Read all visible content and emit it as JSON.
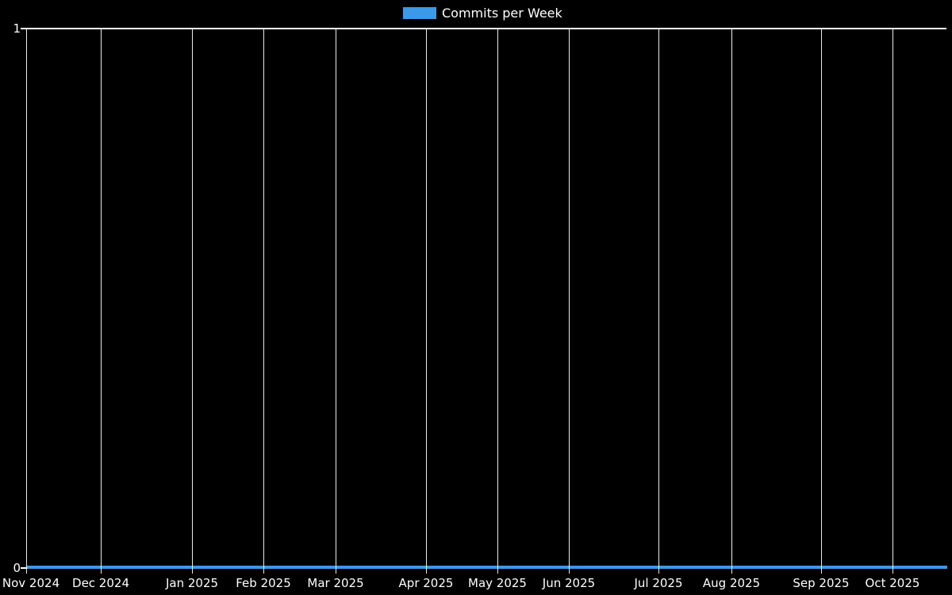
{
  "page": {
    "background_color": "#000000",
    "text_color": "#ffffff",
    "grid_color": "#ffffff"
  },
  "legend": {
    "label": "Commits per Week",
    "swatch_color": "#3B99E8"
  },
  "y_axis": {
    "max_label": "1",
    "min_label": "0"
  },
  "x_axis": {
    "ticks": [
      "Nov 2024",
      "Dec 2024",
      "Jan 2025",
      "Feb 2025",
      "Mar 2025",
      "Apr 2025",
      "May 2025",
      "Jun 2025",
      "Jul 2025",
      "Aug 2025",
      "Sep 2025",
      "Oct 2025"
    ]
  },
  "chart_data": {
    "type": "line",
    "title": "Commits per Week",
    "legend_entries": [
      "Commits per Week"
    ],
    "legend_position": "top-center",
    "xlabel": "",
    "ylabel": "",
    "ylim": [
      0,
      1
    ],
    "y_tick_labels": [
      "0",
      "1"
    ],
    "x_tick_labels": [
      "Nov 2024",
      "Dec 2024",
      "Jan 2025",
      "Feb 2025",
      "Mar 2025",
      "Apr 2025",
      "May 2025",
      "Jun 2025",
      "Jul 2025",
      "Aug 2025",
      "Sep 2025",
      "Oct 2025"
    ],
    "grid": "vertical-monthly",
    "background": "#000000",
    "series": [
      {
        "name": "Commits per Week",
        "color": "#3B99E8",
        "x_unit": "week",
        "values": [
          0,
          0,
          0,
          0,
          0,
          0,
          0,
          0,
          0,
          0,
          0,
          0,
          0,
          0,
          0,
          0,
          0,
          0,
          0,
          0,
          0,
          0,
          0,
          0,
          0,
          0,
          0,
          0,
          0,
          0,
          0,
          0,
          0,
          0,
          0,
          0,
          0,
          0,
          0,
          0,
          0,
          0,
          0,
          0,
          0,
          0,
          0,
          0,
          0,
          0,
          0,
          0
        ]
      }
    ]
  }
}
